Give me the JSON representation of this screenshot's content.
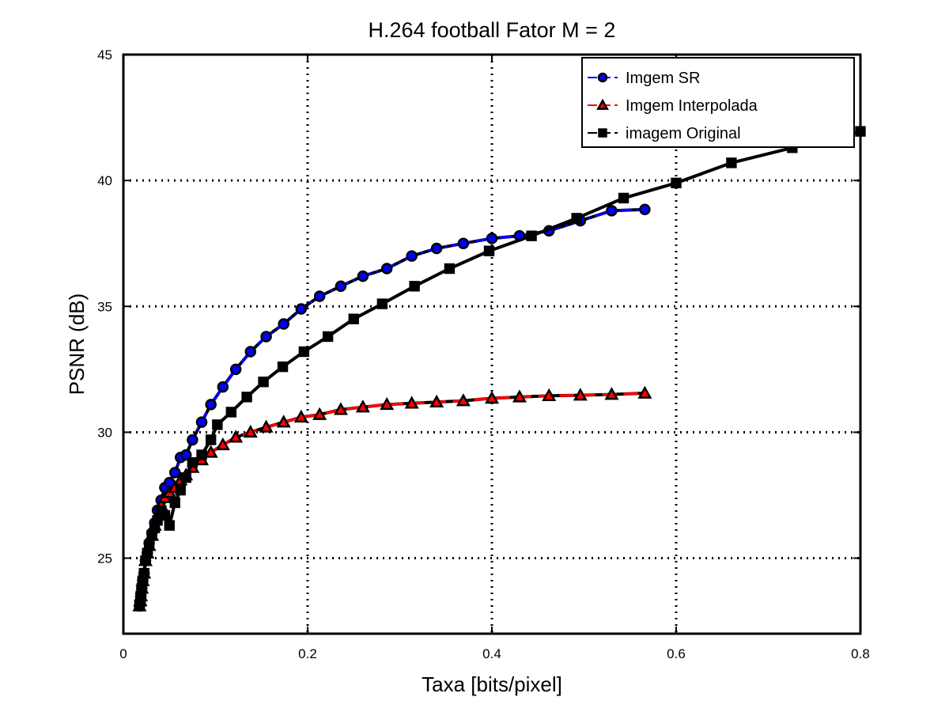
{
  "chart_data": {
    "type": "line",
    "title": "H.264 football Fator M = 2",
    "xlabel": "Taxa [bits/pixel]",
    "ylabel": "PSNR (dB)",
    "xlim": [
      0,
      0.8
    ],
    "ylim": [
      22,
      45
    ],
    "xticks": [
      0,
      0.2,
      0.4,
      0.6,
      0.8
    ],
    "xtick_labels": [
      "0",
      "0.2",
      "0.4",
      "0.6",
      "0.8"
    ],
    "yticks": [
      25,
      30,
      35,
      40,
      45
    ],
    "ytick_labels": [
      "25",
      "30",
      "35",
      "40",
      "45"
    ],
    "grid": true,
    "legend_position": "top-right",
    "series": [
      {
        "name": "Imgem SR",
        "color": "#0000ff",
        "marker": "circle",
        "linestyle": "dash-dot",
        "x": [
          0.0175,
          0.0185,
          0.019,
          0.02,
          0.021,
          0.0225,
          0.024,
          0.026,
          0.028,
          0.031,
          0.034,
          0.037,
          0.041,
          0.045,
          0.05,
          0.056,
          0.062,
          0.068,
          0.075,
          0.085,
          0.095,
          0.108,
          0.122,
          0.138,
          0.155,
          0.174,
          0.193,
          0.213,
          0.236,
          0.26,
          0.286,
          0.313,
          0.34,
          0.369,
          0.4,
          0.43,
          0.462,
          0.496,
          0.53,
          0.566
        ],
        "y": [
          23.1,
          23.3,
          23.5,
          23.8,
          24.1,
          24.4,
          24.9,
          25.2,
          25.6,
          26.0,
          26.4,
          26.9,
          27.3,
          27.8,
          28.0,
          28.4,
          29.0,
          29.1,
          29.7,
          30.4,
          31.1,
          31.8,
          32.5,
          33.2,
          33.8,
          34.3,
          34.9,
          35.4,
          35.8,
          36.2,
          36.5,
          37.0,
          37.3,
          37.5,
          37.7,
          37.8,
          38.0,
          38.4,
          38.8,
          38.85
        ]
      },
      {
        "name": "Imgem Interpolada",
        "color": "#ff0000",
        "marker": "triangle",
        "linestyle": "dashed",
        "x": [
          0.0175,
          0.0185,
          0.019,
          0.02,
          0.021,
          0.0225,
          0.024,
          0.026,
          0.028,
          0.031,
          0.034,
          0.037,
          0.041,
          0.045,
          0.05,
          0.056,
          0.062,
          0.068,
          0.075,
          0.085,
          0.095,
          0.108,
          0.122,
          0.138,
          0.155,
          0.174,
          0.193,
          0.213,
          0.236,
          0.26,
          0.286,
          0.313,
          0.34,
          0.369,
          0.4,
          0.43,
          0.462,
          0.496,
          0.53,
          0.566
        ],
        "y": [
          23.1,
          23.3,
          23.5,
          23.8,
          24.1,
          24.4,
          24.9,
          25.2,
          25.5,
          25.9,
          26.3,
          26.7,
          27.1,
          27.4,
          27.6,
          27.8,
          28.1,
          28.3,
          28.6,
          28.9,
          29.2,
          29.5,
          29.8,
          30.0,
          30.2,
          30.4,
          30.6,
          30.7,
          30.9,
          31.0,
          31.1,
          31.15,
          31.2,
          31.25,
          31.35,
          31.4,
          31.45,
          31.47,
          31.5,
          31.55
        ]
      },
      {
        "name": "imagem Original",
        "color": "#000000",
        "marker": "square",
        "linestyle": "dashed",
        "x": [
          0.0175,
          0.0185,
          0.019,
          0.02,
          0.021,
          0.0225,
          0.024,
          0.026,
          0.028,
          0.031,
          0.034,
          0.037,
          0.041,
          0.045,
          0.05,
          0.056,
          0.062,
          0.068,
          0.075,
          0.085,
          0.095,
          0.102,
          0.117,
          0.134,
          0.152,
          0.173,
          0.196,
          0.222,
          0.25,
          0.281,
          0.316,
          0.354,
          0.397,
          0.443,
          0.492,
          0.543,
          0.6,
          0.66,
          0.726,
          0.8
        ],
        "y": [
          23.1,
          23.3,
          23.5,
          23.8,
          24.1,
          24.4,
          24.9,
          25.2,
          25.5,
          25.9,
          26.2,
          26.5,
          26.9,
          26.7,
          26.3,
          27.2,
          27.7,
          28.2,
          28.8,
          29.1,
          29.7,
          30.3,
          30.8,
          31.4,
          32.0,
          32.6,
          33.2,
          33.8,
          34.5,
          35.1,
          35.8,
          36.5,
          37.2,
          37.8,
          38.5,
          39.3,
          39.9,
          40.7,
          41.3,
          41.95
        ]
      }
    ]
  }
}
